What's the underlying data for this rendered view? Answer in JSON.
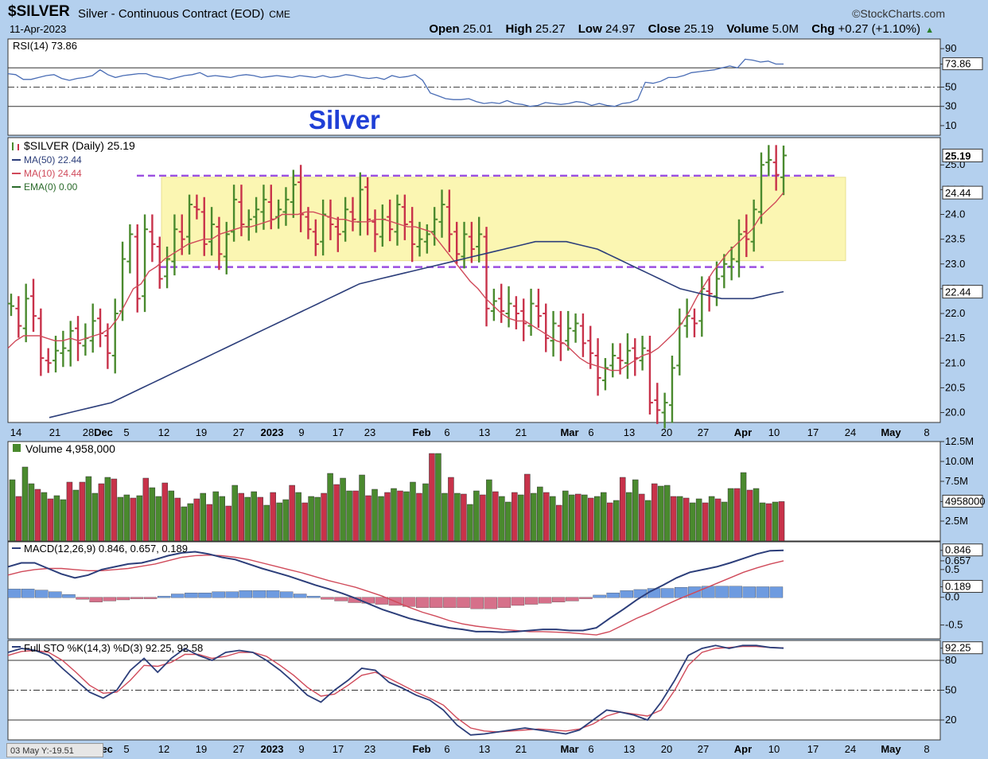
{
  "header": {
    "symbol": "$SILVER",
    "title": "Silver - Continuous Contract (EOD)",
    "exchange": "CME",
    "brand": "©StockCharts.com",
    "date": "11-Apr-2023",
    "open_label": "Open",
    "open": "25.01",
    "high_label": "High",
    "high": "25.27",
    "low_label": "Low",
    "low": "24.97",
    "close_label": "Close",
    "close": "25.19",
    "volume_label": "Volume",
    "volume": "5.0M",
    "chg_label": "Chg",
    "chg": "+0.27 (+1.10%)",
    "chg_arrow": "▲"
  },
  "annotation": {
    "text": "Silver",
    "color": "#1f3fd6"
  },
  "colors": {
    "up": "#4a8a2e",
    "down": "#c8324a",
    "ma50": "#2c3e7a",
    "ma10": "#d04a5a",
    "band": "#fbf6b2",
    "dash": "#9b4fe0",
    "macd_hist": "#6e9be0",
    "rsi": "#4a6db5"
  },
  "footer": {
    "corner_text": "03 May Y:-19.51"
  },
  "chart_data": [
    {
      "type": "line",
      "panel": "rsi",
      "legend": "RSI(14) 73.86",
      "ylim": [
        0,
        100
      ],
      "ticks": [
        "90",
        "73.86",
        "50",
        "30",
        "10"
      ],
      "reference_lines": [
        70,
        50,
        30
      ],
      "series": [
        {
          "name": "RSI(14)",
          "values": [
            64,
            63,
            58,
            58,
            60,
            62,
            63,
            59,
            57,
            59,
            60,
            62,
            68,
            63,
            60,
            62,
            63,
            64,
            64,
            61,
            60,
            58,
            60,
            62,
            63,
            65,
            61,
            62,
            61,
            60,
            62,
            63,
            62,
            60,
            61,
            62,
            61,
            60,
            62,
            61,
            60,
            62,
            60,
            61,
            63,
            62,
            60,
            59,
            60,
            58,
            62,
            60,
            61,
            63,
            57,
            44,
            41,
            38,
            37,
            37,
            38,
            35,
            33,
            34,
            33,
            36,
            33,
            32,
            30,
            31,
            34,
            33,
            32,
            33,
            35,
            34,
            31,
            33,
            31,
            30,
            33,
            34,
            37,
            55,
            54,
            56,
            60,
            60,
            62,
            65,
            66,
            67,
            68,
            70,
            72,
            70,
            79,
            78,
            76,
            77,
            74,
            74
          ]
        }
      ]
    },
    {
      "type": "bar",
      "panel": "price",
      "legend": [
        "$SILVER (Daily) 25.19",
        "MA(50) 22.44",
        "MA(10) 24.44",
        "EMA(0) 0.00"
      ],
      "annotation": "Silver",
      "ylim": [
        19.8,
        25.55
      ],
      "yticks": [
        "20.0",
        "20.5",
        "21.0",
        "21.5",
        "22.0",
        "22.5",
        "23.0",
        "23.5",
        "24.0",
        "24.5",
        "25.0"
      ],
      "last_values": {
        "close": "25.19",
        "ma10": "24.44",
        "ma50": "22.44"
      },
      "resistance": 23.0,
      "support_upper": 24.75,
      "support_lower": 22.97,
      "xtick_labels": [
        "14",
        "21",
        "28",
        "Dec",
        "5",
        "12",
        "19",
        "27",
        "2023",
        "9",
        "17",
        "23",
        "Feb",
        "6",
        "13",
        "21",
        "Mar",
        "6",
        "13",
        "20",
        "27",
        "Apr",
        "10",
        "17",
        "24",
        "May",
        "8"
      ],
      "series": [
        {
          "name": "close",
          "values": [
            22.15,
            21.75,
            22.3,
            21.95,
            21.1,
            21.0,
            21.25,
            21.3,
            21.65,
            21.4,
            21.5,
            21.85,
            21.6,
            21.2,
            22.0,
            23.1,
            23.6,
            22.3,
            23.7,
            23.4,
            22.7,
            23.1,
            23.7,
            23.5,
            24.2,
            24.1,
            23.4,
            23.8,
            23.2,
            23.6,
            24.3,
            23.8,
            23.9,
            24.1,
            24.3,
            23.9,
            24.1,
            24.3,
            24.6,
            24.0,
            23.7,
            23.4,
            24.0,
            23.8,
            23.6,
            24.1,
            23.9,
            24.5,
            23.9,
            23.6,
            23.9,
            23.7,
            24.2,
            23.8,
            23.4,
            23.5,
            23.6,
            23.9,
            24.2,
            23.6,
            23.2,
            23.6,
            23.3,
            23.6,
            22.1,
            22.25,
            22.05,
            22.2,
            22.0,
            21.8,
            22.2,
            21.95,
            21.5,
            21.8,
            21.4,
            21.7,
            21.8,
            21.4,
            21.2,
            20.7,
            20.9,
            21.15,
            21.05,
            21.25,
            21.1,
            21.3,
            20.2,
            20.05,
            20.2,
            20.9,
            21.8,
            21.95,
            21.8,
            22.5,
            22.4,
            22.7,
            23.0,
            23.1,
            23.6,
            23.5,
            24.1,
            25.0,
            25.1,
            24.8,
            25.19
          ]
        },
        {
          "name": "MA(10)",
          "values": [
            21.3,
            21.45,
            21.55,
            21.55,
            21.55,
            21.5,
            21.45,
            21.45,
            21.5,
            21.45,
            21.5,
            21.55,
            21.6,
            21.7,
            21.9,
            22.2,
            22.5,
            22.6,
            22.85,
            22.95,
            23.1,
            23.2,
            23.3,
            23.4,
            23.45,
            23.5,
            23.5,
            23.6,
            23.65,
            23.7,
            23.75,
            23.75,
            23.8,
            23.85,
            23.9,
            24.0,
            24.0,
            24.0,
            24.05,
            24.05,
            24.0,
            23.95,
            23.9,
            23.9,
            23.85,
            23.85,
            23.85,
            23.9,
            23.9,
            23.85,
            23.8,
            23.75,
            23.75,
            23.7,
            23.65,
            23.45,
            23.25,
            23.05,
            22.85,
            22.65,
            22.5,
            22.3,
            22.15,
            22.0,
            21.9,
            21.85,
            21.85,
            21.75,
            21.65,
            21.55,
            21.45,
            21.4,
            21.25,
            21.1,
            21.0,
            20.95,
            20.9,
            20.85,
            20.85,
            20.95,
            21.05,
            21.15,
            21.2,
            21.3,
            21.45,
            21.6,
            21.8,
            22.05,
            22.35,
            22.6,
            22.85,
            23.05,
            23.25,
            23.4,
            23.55,
            23.7,
            23.95,
            24.1,
            24.25,
            24.44
          ]
        },
        {
          "name": "MA(50)",
          "values": [
            19.9,
            19.95,
            20.0,
            20.05,
            20.1,
            20.15,
            20.2,
            20.3,
            20.4,
            20.5,
            20.6,
            20.7,
            20.8,
            20.9,
            21.0,
            21.1,
            21.2,
            21.3,
            21.4,
            21.5,
            21.6,
            21.7,
            21.8,
            21.9,
            22.0,
            22.1,
            22.2,
            22.3,
            22.4,
            22.5,
            22.6,
            22.65,
            22.7,
            22.75,
            22.8,
            22.85,
            22.9,
            22.95,
            23.0,
            23.05,
            23.1,
            23.15,
            23.2,
            23.25,
            23.3,
            23.35,
            23.4,
            23.45,
            23.45,
            23.45,
            23.45,
            23.4,
            23.35,
            23.3,
            23.2,
            23.1,
            23.0,
            22.9,
            22.8,
            22.7,
            22.6,
            22.5,
            22.45,
            22.4,
            22.35,
            22.3,
            22.3,
            22.3,
            22.3,
            22.35,
            22.4,
            22.44
          ]
        }
      ]
    },
    {
      "type": "bar",
      "panel": "volume",
      "legend": "Volume 4,958,000",
      "ylim": [
        0,
        12500000
      ],
      "yticks": [
        "12.5M",
        "10.0M",
        "7.5M",
        "4958000",
        "2.5M"
      ],
      "series": [
        {
          "name": "Volume",
          "values": [
            7.7,
            5.6,
            9.3,
            7.2,
            6.5,
            6.1,
            5.3,
            5.7,
            5.2,
            7.4,
            6.4,
            7.4,
            8.1,
            6.0,
            7.2,
            8.0,
            7.8,
            5.5,
            5.8,
            5.4,
            5.7,
            7.9,
            6.7,
            5.6,
            7.3,
            6.3,
            5.4,
            4.3,
            4.7,
            5.3,
            6.0,
            4.6,
            6.2,
            5.6,
            4.4,
            7.0,
            6.0,
            5.5,
            6.2,
            5.5,
            4.5,
            6.1,
            4.8,
            5.2,
            7.0,
            6.1,
            4.8,
            5.6,
            5.5,
            6.0,
            8.5,
            7.1,
            7.9,
            6.3,
            6.3,
            8.3,
            5.7,
            6.5,
            5.6,
            6.1,
            6.6,
            6.3,
            6.2,
            7.4,
            6.0,
            7.2,
            11.0,
            11.0,
            6.0,
            8.0,
            6.0,
            5.9,
            4.6,
            6.3,
            5.8,
            7.7,
            6.2,
            5.6,
            4.9,
            6.1,
            5.8,
            8.4,
            6.0,
            6.8,
            6.1,
            5.6,
            4.5,
            6.3,
            5.8,
            5.9,
            5.8,
            5.4,
            5.6,
            6.1,
            4.8,
            5.1,
            8.0,
            6.1,
            7.7,
            5.9,
            5.1,
            7.2,
            6.9,
            7.0,
            5.6,
            5.6,
            5.4,
            4.8,
            5.3,
            4.8,
            5.6,
            5.3,
            4.9,
            6.6,
            6.6,
            8.6,
            6.4,
            6.6,
            4.8,
            4.7,
            4.9,
            4.958
          ]
        }
      ]
    },
    {
      "type": "line",
      "panel": "macd",
      "legend": "MACD(12,26,9) 0.846, 0.657, 0.189",
      "ylim": [
        -0.75,
        1.0
      ],
      "yticks": [
        "0.846",
        "0.657",
        "0.5",
        "0.189",
        "0.0",
        "-0.5"
      ],
      "series": [
        {
          "name": "MACD",
          "values": [
            0.55,
            0.62,
            0.62,
            0.52,
            0.42,
            0.35,
            0.4,
            0.5,
            0.55,
            0.6,
            0.62,
            0.68,
            0.75,
            0.8,
            0.82,
            0.78,
            0.72,
            0.68,
            0.6,
            0.52,
            0.45,
            0.38,
            0.3,
            0.22,
            0.15,
            0.07,
            -0.02,
            -0.12,
            -0.22,
            -0.3,
            -0.38,
            -0.44,
            -0.5,
            -0.55,
            -0.58,
            -0.62,
            -0.62,
            -0.63,
            -0.62,
            -0.6,
            -0.58,
            -0.58,
            -0.6,
            -0.6,
            -0.55,
            -0.38,
            -0.22,
            -0.05,
            0.1,
            0.22,
            0.35,
            0.45,
            0.5,
            0.55,
            0.62,
            0.7,
            0.78,
            0.84,
            0.846
          ]
        },
        {
          "name": "Signal",
          "values": [
            0.4,
            0.46,
            0.5,
            0.52,
            0.52,
            0.5,
            0.48,
            0.48,
            0.5,
            0.52,
            0.56,
            0.6,
            0.66,
            0.72,
            0.75,
            0.76,
            0.75,
            0.72,
            0.68,
            0.62,
            0.56,
            0.5,
            0.44,
            0.37,
            0.3,
            0.24,
            0.18,
            0.1,
            0.02,
            -0.08,
            -0.18,
            -0.27,
            -0.34,
            -0.42,
            -0.48,
            -0.52,
            -0.55,
            -0.58,
            -0.6,
            -0.62,
            -0.62,
            -0.63,
            -0.64,
            -0.66,
            -0.68,
            -0.62,
            -0.5,
            -0.38,
            -0.28,
            -0.16,
            -0.05,
            0.05,
            0.15,
            0.25,
            0.35,
            0.45,
            0.53,
            0.6,
            0.657
          ]
        },
        {
          "name": "Histogram",
          "values": [
            0.15,
            0.15,
            0.13,
            0.1,
            0.05,
            -0.03,
            -0.08,
            -0.06,
            -0.04,
            -0.02,
            -0.02,
            0.02,
            0.06,
            0.08,
            0.08,
            0.1,
            0.1,
            0.12,
            0.12,
            0.12,
            0.1,
            0.06,
            0.02,
            -0.03,
            -0.06,
            -0.09,
            -0.1,
            -0.12,
            -0.14,
            -0.16,
            -0.18,
            -0.18,
            -0.18,
            -0.18,
            -0.2,
            -0.2,
            -0.18,
            -0.14,
            -0.12,
            -0.1,
            -0.08,
            -0.06,
            -0.02,
            0.04,
            0.08,
            0.12,
            0.14,
            0.16,
            0.16,
            0.18,
            0.19,
            0.2,
            0.2,
            0.2,
            0.19,
            0.19,
            0.189
          ]
        }
      ]
    },
    {
      "type": "line",
      "panel": "stochastic",
      "legend": "Full STO %K(14,3) %D(3) 92.25, 92.58",
      "ylim": [
        0,
        100
      ],
      "yticks": [
        "92.25",
        "80",
        "50",
        "20"
      ],
      "reference_lines": [
        80,
        50,
        20
      ],
      "series": [
        {
          "name": "%K",
          "values": [
            88,
            92,
            90,
            85,
            72,
            60,
            48,
            42,
            50,
            70,
            82,
            68,
            82,
            92,
            85,
            80,
            88,
            90,
            88,
            80,
            70,
            58,
            45,
            38,
            50,
            60,
            72,
            70,
            58,
            52,
            45,
            40,
            30,
            15,
            5,
            6,
            8,
            10,
            12,
            10,
            8,
            6,
            10,
            20,
            30,
            28,
            25,
            20,
            38,
            60,
            85,
            92,
            95,
            92,
            95,
            95,
            93,
            92.25
          ]
        },
        {
          "name": "%D",
          "values": [
            85,
            89,
            90,
            88,
            80,
            68,
            55,
            47,
            48,
            60,
            75,
            74,
            78,
            86,
            86,
            82,
            84,
            88,
            88,
            84,
            75,
            65,
            53,
            44,
            46,
            55,
            65,
            68,
            62,
            55,
            48,
            42,
            35,
            22,
            12,
            9,
            8,
            9,
            10,
            11,
            10,
            9,
            11,
            16,
            24,
            28,
            26,
            24,
            30,
            50,
            75,
            88,
            92,
            93,
            94,
            94,
            93,
            92.58
          ]
        }
      ]
    }
  ]
}
